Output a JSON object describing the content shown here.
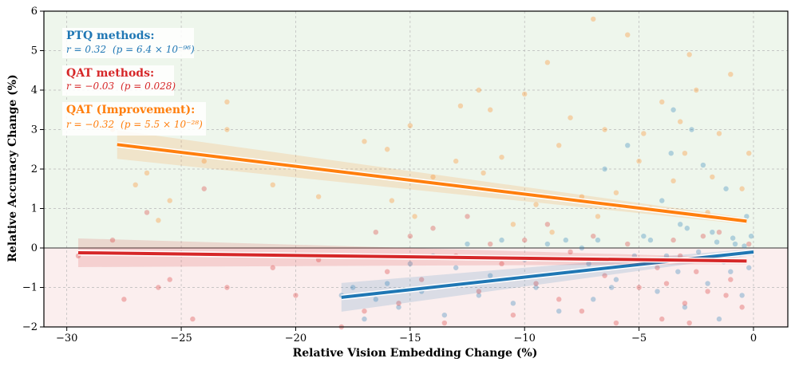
{
  "chart_data": {
    "type": "scatter",
    "title": "",
    "xlabel": "Relative Vision Embedding Change (%)",
    "ylabel": "Relative Accuracy Change (%)",
    "xlim": [
      -31,
      1.5
    ],
    "ylim": [
      -2,
      6
    ],
    "xticks": [
      -30,
      -25,
      -20,
      -15,
      -10,
      -5,
      0
    ],
    "yticks": [
      -2,
      -1,
      0,
      1,
      2,
      3,
      4,
      5,
      6
    ],
    "xtick_labels": [
      "−30",
      "−25",
      "−20",
      "−15",
      "−10",
      "−5",
      "0"
    ],
    "ytick_labels": [
      "−2",
      "−1",
      "0",
      "1",
      "2",
      "3",
      "4",
      "5",
      "6"
    ],
    "grid": true,
    "background_regions": [
      {
        "from": 0,
        "to": 6,
        "color": "#eef6ec"
      },
      {
        "from": -2,
        "to": 0,
        "color": "#fbeeee"
      }
    ],
    "series": [
      {
        "key": "ptq",
        "color": "#1f77b4",
        "points": [
          [
            -0.1,
            0.3
          ],
          [
            -0.2,
            -0.5
          ],
          [
            -0.3,
            0.8
          ],
          [
            -0.5,
            -1.2
          ],
          [
            -0.8,
            0.1
          ],
          [
            -1,
            -0.6
          ],
          [
            -1.2,
            1.5
          ],
          [
            -1.5,
            -1.8
          ],
          [
            -1.8,
            0.4
          ],
          [
            -2,
            -0.9
          ],
          [
            -2.2,
            2.1
          ],
          [
            -2.5,
            -0.3
          ],
          [
            -2.7,
            3.0
          ],
          [
            -3,
            -1.5
          ],
          [
            -3.2,
            0.6
          ],
          [
            -3.5,
            3.5
          ],
          [
            -3.8,
            -0.2
          ],
          [
            -4,
            1.2
          ],
          [
            -4.2,
            -1.1
          ],
          [
            -4.5,
            0.2
          ],
          [
            -5,
            -0.4
          ],
          [
            -5.5,
            2.6
          ],
          [
            -6,
            -0.8
          ],
          [
            -6.5,
            2.0
          ],
          [
            -7,
            -1.3
          ],
          [
            -7.5,
            0.0
          ],
          [
            -8,
            -0.6
          ],
          [
            -8.5,
            -1.6
          ],
          [
            -9,
            0.1
          ],
          [
            -9.5,
            -1.0
          ],
          [
            -10,
            -0.3
          ],
          [
            -10.5,
            -1.4
          ],
          [
            -11,
            0.2
          ],
          [
            -11.5,
            -0.7
          ],
          [
            -12,
            -1.2
          ],
          [
            -12.5,
            0.1
          ],
          [
            -13,
            -0.5
          ],
          [
            -13.5,
            -1.7
          ],
          [
            -14,
            -0.2
          ],
          [
            -14.5,
            -1.1
          ],
          [
            -15,
            -0.4
          ],
          [
            -15.5,
            -1.5
          ],
          [
            -16,
            -0.9
          ],
          [
            -16.5,
            -1.3
          ],
          [
            -17,
            -1.8
          ],
          [
            -17.5,
            -1.0
          ],
          [
            -18,
            -1.2
          ],
          [
            -0.4,
            0.05
          ],
          [
            -0.6,
            -0.15
          ],
          [
            -0.9,
            0.25
          ],
          [
            -1.3,
            -0.35
          ],
          [
            -1.6,
            0.15
          ],
          [
            -2.4,
            -0.1
          ],
          [
            -2.9,
            0.5
          ],
          [
            -3.3,
            -0.6
          ],
          [
            -3.6,
            2.4
          ],
          [
            -4.8,
            0.3
          ],
          [
            -5.2,
            -0.2
          ],
          [
            -6.2,
            -1.0
          ],
          [
            -6.8,
            0.2
          ],
          [
            -7.2,
            -0.4
          ],
          [
            -8.2,
            0.2
          ]
        ],
        "fit": {
          "x": [
            -18,
            0
          ],
          "y": [
            -1.25,
            -0.1
          ]
        }
      },
      {
        "key": "qat",
        "color": "#d62728",
        "points": [
          [
            -29.5,
            -0.2
          ],
          [
            -28,
            0.2
          ],
          [
            -27.5,
            -1.3
          ],
          [
            -26.5,
            0.9
          ],
          [
            -26,
            -1.0
          ],
          [
            -25.5,
            -0.8
          ],
          [
            -24.5,
            -1.8
          ],
          [
            -24,
            1.5
          ],
          [
            -23,
            -1.0
          ],
          [
            -21,
            -0.5
          ],
          [
            -20,
            -1.2
          ],
          [
            -19,
            -0.3
          ],
          [
            -18,
            -2.0
          ],
          [
            -17,
            -1.6
          ],
          [
            -16.5,
            0.4
          ],
          [
            -16,
            -0.6
          ],
          [
            -15.5,
            -1.4
          ],
          [
            -15,
            0.3
          ],
          [
            -14.5,
            -0.8
          ],
          [
            -14,
            0.5
          ],
          [
            -13.5,
            -1.9
          ],
          [
            -13,
            -0.2
          ],
          [
            -12.5,
            0.8
          ],
          [
            -12,
            -1.1
          ],
          [
            -11.5,
            0.1
          ],
          [
            -11,
            -0.4
          ],
          [
            -10.5,
            -1.7
          ],
          [
            -10,
            0.2
          ],
          [
            -9.5,
            -0.9
          ],
          [
            -9,
            0.6
          ],
          [
            -8.5,
            -1.3
          ],
          [
            -8,
            -0.1
          ],
          [
            -7.5,
            -1.6
          ],
          [
            -7,
            0.3
          ],
          [
            -6.5,
            -0.7
          ],
          [
            -6,
            -1.9
          ],
          [
            -5.5,
            0.1
          ],
          [
            -5,
            -1.0
          ],
          [
            -4.5,
            -0.3
          ],
          [
            -4,
            -1.8
          ],
          [
            -3.5,
            0.2
          ],
          [
            -3,
            -1.4
          ],
          [
            -2.5,
            -0.6
          ],
          [
            -2,
            -1.1
          ],
          [
            -1.5,
            0.4
          ],
          [
            -1,
            -0.8
          ],
          [
            -0.5,
            -1.5
          ],
          [
            -0.2,
            0.1
          ],
          [
            -3.2,
            -0.2
          ],
          [
            -2.8,
            -1.9
          ],
          [
            -3.8,
            -0.9
          ],
          [
            -1.8,
            -0.3
          ],
          [
            -4.2,
            -0.5
          ],
          [
            -2.2,
            0.3
          ],
          [
            -1.2,
            -1.2
          ]
        ],
        "fit": {
          "x": [
            -29.5,
            -0.3
          ],
          "y": [
            -0.12,
            -0.33
          ]
        }
      },
      {
        "key": "qat_improvement",
        "color": "#ff7f0e",
        "points": [
          [
            -28,
            3.0
          ],
          [
            -27,
            1.6
          ],
          [
            -26.5,
            1.9
          ],
          [
            -26,
            0.7
          ],
          [
            -25.5,
            1.2
          ],
          [
            -24,
            2.2
          ],
          [
            -23,
            3.7
          ],
          [
            -23,
            3.0
          ],
          [
            -21,
            1.6
          ],
          [
            -19,
            1.3
          ],
          [
            -17,
            2.7
          ],
          [
            -16,
            2.5
          ],
          [
            -15,
            3.1
          ],
          [
            -14,
            1.8
          ],
          [
            -13,
            2.2
          ],
          [
            -12,
            4.0
          ],
          [
            -11.5,
            3.5
          ],
          [
            -11,
            2.3
          ],
          [
            -10,
            3.9
          ],
          [
            -9.5,
            1.1
          ],
          [
            -9,
            4.7
          ],
          [
            -8.5,
            2.6
          ],
          [
            -8,
            3.3
          ],
          [
            -7.5,
            1.3
          ],
          [
            -7,
            5.8
          ],
          [
            -6.5,
            3.0
          ],
          [
            -6,
            1.4
          ],
          [
            -5.5,
            5.4
          ],
          [
            -5,
            2.2
          ],
          [
            -4.5,
            1.0
          ],
          [
            -4,
            3.7
          ],
          [
            -3.5,
            1.7
          ],
          [
            -3,
            2.4
          ],
          [
            -2.5,
            4.0
          ],
          [
            -2,
            0.9
          ],
          [
            -1.5,
            2.9
          ],
          [
            -1,
            4.4
          ],
          [
            -0.5,
            1.5
          ],
          [
            -0.2,
            2.4
          ],
          [
            -2.8,
            4.9
          ],
          [
            -3.2,
            3.2
          ],
          [
            -1.8,
            1.8
          ],
          [
            -4.8,
            2.9
          ],
          [
            -6.8,
            0.8
          ],
          [
            -8.8,
            0.4
          ],
          [
            -12.8,
            3.6
          ],
          [
            -15.8,
            1.2
          ],
          [
            -14.8,
            0.8
          ],
          [
            -11.8,
            1.9
          ],
          [
            -10.5,
            0.6
          ]
        ],
        "fit": {
          "x": [
            -27.8,
            -0.3
          ],
          "y": [
            2.62,
            0.68
          ]
        }
      }
    ],
    "annotations": [
      {
        "key": "ptq",
        "title": "PTQ methods:",
        "stat_r": "r = 0.32",
        "stat_p": "(p = 6.4 × 10⁻⁹⁶)",
        "color": "#1f77b4"
      },
      {
        "key": "qat",
        "title": "QAT methods:",
        "stat_r": "r = −0.03",
        "stat_p": "(p = 0.028)",
        "color": "#d62728"
      },
      {
        "key": "qat_improvement",
        "title": "QAT (Improvement):",
        "stat_r": "r = −0.32",
        "stat_p": "(p = 5.5 × 10⁻²⁸)",
        "color": "#ff7f0e"
      }
    ]
  }
}
